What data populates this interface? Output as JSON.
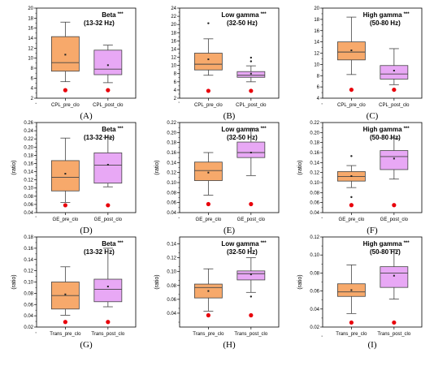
{
  "colors": {
    "pre": "#F7A96B",
    "post": "#E8A8F5",
    "red": "#E8000B",
    "stroke": "#444444"
  },
  "chart_data": [
    {
      "type": "box",
      "panel_label": "(A)",
      "title_band": "Beta",
      "title_sig": "***",
      "title_range": "(13-32 Hz)",
      "ylabel": "",
      "ylim": [
        2,
        20
      ],
      "yticks": [
        2,
        4,
        6,
        8,
        10,
        12,
        14,
        16,
        18,
        20
      ],
      "categories": [
        "CPL_pre_clo",
        "CPL_post_clo"
      ],
      "boxes": [
        {
          "whisker_low": 5.3,
          "q1": 7.4,
          "median": 9.1,
          "q3": 14.3,
          "whisker_high": 17.2,
          "mean": 10.7,
          "outliers": [],
          "marker": 3.6
        },
        {
          "whisker_low": 5.1,
          "q1": 6.7,
          "median": 7.8,
          "q3": 11.6,
          "whisker_high": 12.6,
          "mean": 8.6,
          "outliers": [],
          "marker": 3.6
        }
      ]
    },
    {
      "type": "box",
      "panel_label": "(B)",
      "title_band": "Low gamma",
      "title_sig": "***",
      "title_range": "(32-50 Hz)",
      "ylabel": "",
      "ylim": [
        2,
        24
      ],
      "yticks": [
        2,
        4,
        6,
        8,
        10,
        12,
        14,
        16,
        18,
        20,
        22,
        24
      ],
      "categories": [
        "CPL_pre_clo",
        "CPL_post_clo"
      ],
      "boxes": [
        {
          "whisker_low": 7.6,
          "q1": 8.9,
          "median": 10.3,
          "q3": 13.0,
          "whisker_high": 16.5,
          "mean": 11.5,
          "outliers": [
            20.3
          ],
          "marker": 3.8
        },
        {
          "whisker_low": 6.0,
          "q1": 7.1,
          "median": 7.6,
          "q3": 8.5,
          "whisker_high": 9.9,
          "mean": 8.0,
          "outliers": [
            11.0,
            11.9
          ],
          "marker": 3.8
        }
      ]
    },
    {
      "type": "box",
      "panel_label": "(C)",
      "title_band": "High gamma",
      "title_sig": "***",
      "title_range": "(50-80 Hz)",
      "ylabel": "",
      "ylim": [
        4,
        20
      ],
      "yticks": [
        4,
        6,
        8,
        10,
        12,
        14,
        16,
        18,
        20
      ],
      "categories": [
        "CPL_pre_clo",
        "CPL_post_clo"
      ],
      "boxes": [
        {
          "whisker_low": 8.2,
          "q1": 10.8,
          "median": 12.2,
          "q3": 14.0,
          "whisker_high": 18.4,
          "mean": 12.5,
          "outliers": [],
          "marker": 5.5
        },
        {
          "whisker_low": 6.4,
          "q1": 7.4,
          "median": 8.3,
          "q3": 9.8,
          "whisker_high": 12.8,
          "mean": 8.9,
          "outliers": [],
          "marker": 5.5
        }
      ]
    },
    {
      "type": "box",
      "panel_label": "(D)",
      "title_band": "Beta",
      "title_sig": "***",
      "title_range": "(13-32 Hz)",
      "ylabel": "(ratio)",
      "ylim": [
        0.04,
        0.26
      ],
      "yticks": [
        0.04,
        0.06,
        0.08,
        0.1,
        0.12,
        0.14,
        0.16,
        0.18,
        0.2,
        0.22,
        0.24,
        0.26
      ],
      "categories": [
        "GE_pre_clo",
        "GE_post_clo"
      ],
      "boxes": [
        {
          "whisker_low": 0.065,
          "q1": 0.093,
          "median": 0.126,
          "q3": 0.167,
          "whisker_high": 0.222,
          "mean": 0.135,
          "outliers": [],
          "marker": 0.058
        },
        {
          "whisker_low": 0.103,
          "q1": 0.112,
          "median": 0.156,
          "q3": 0.186,
          "whisker_high": 0.223,
          "mean": 0.157,
          "outliers": [],
          "marker": 0.058
        }
      ]
    },
    {
      "type": "box",
      "panel_label": "(E)",
      "title_band": "Low gamma",
      "title_sig": "***",
      "title_range": "(32-50 Hz)",
      "ylabel": "(ratio)",
      "ylim": [
        0.04,
        0.22
      ],
      "yticks": [
        0.04,
        0.06,
        0.08,
        0.1,
        0.12,
        0.14,
        0.16,
        0.18,
        0.2,
        0.22
      ],
      "categories": [
        "GE_pre_clo",
        "GE_post_clo"
      ],
      "boxes": [
        {
          "whisker_low": 0.075,
          "q1": 0.104,
          "median": 0.124,
          "q3": 0.141,
          "whisker_high": 0.16,
          "mean": 0.12,
          "outliers": [],
          "marker": 0.057
        },
        {
          "whisker_low": 0.114,
          "q1": 0.15,
          "median": 0.16,
          "q3": 0.181,
          "whisker_high": 0.208,
          "mean": 0.16,
          "outliers": [],
          "marker": 0.057
        }
      ]
    },
    {
      "type": "box",
      "panel_label": "(F)",
      "title_band": "High gamma",
      "title_sig": "***",
      "title_range": "(50-80 Hz)",
      "ylabel": "(ratio)",
      "ylim": [
        0.04,
        0.22
      ],
      "yticks": [
        0.04,
        0.06,
        0.08,
        0.1,
        0.12,
        0.14,
        0.16,
        0.18,
        0.2,
        0.22
      ],
      "categories": [
        "GE_pre_clo",
        "GE_post_clo"
      ],
      "boxes": [
        {
          "whisker_low": 0.09,
          "q1": 0.103,
          "median": 0.112,
          "q3": 0.122,
          "whisker_high": 0.134,
          "mean": 0.113,
          "outliers": [
            0.153,
            0.071
          ],
          "marker": 0.055
        },
        {
          "whisker_low": 0.107,
          "q1": 0.126,
          "median": 0.152,
          "q3": 0.164,
          "whisker_high": 0.188,
          "mean": 0.148,
          "outliers": [],
          "marker": 0.055
        }
      ]
    },
    {
      "type": "box",
      "panel_label": "(G)",
      "title_band": "Beta",
      "title_sig": "***",
      "title_range": "(13-32 Hz)",
      "ylabel": "(ratio)",
      "ylim": [
        0.02,
        0.18
      ],
      "yticks": [
        0.02,
        0.04,
        0.06,
        0.08,
        0.1,
        0.12,
        0.14,
        0.16,
        0.18
      ],
      "categories": [
        "Trans_pre_clo",
        "Trans_post_clo"
      ],
      "boxes": [
        {
          "whisker_low": 0.041,
          "q1": 0.052,
          "median": 0.076,
          "q3": 0.1,
          "whisker_high": 0.127,
          "mean": 0.078,
          "outliers": [],
          "marker": 0.029
        },
        {
          "whisker_low": 0.056,
          "q1": 0.065,
          "median": 0.087,
          "q3": 0.105,
          "whisker_high": 0.16,
          "mean": 0.092,
          "outliers": [],
          "marker": 0.029
        }
      ]
    },
    {
      "type": "box",
      "panel_label": "(H)",
      "title_band": "Low gamma",
      "title_sig": "***",
      "title_range": "(32-50 Hz)",
      "ylabel": "(ratio)",
      "ylim": [
        0.02,
        0.15
      ],
      "yticks": [
        0.04,
        0.06,
        0.08,
        0.1,
        0.12,
        0.14
      ],
      "categories": [
        "Trans_pre_clo",
        "Trans_post_clo"
      ],
      "boxes": [
        {
          "whisker_low": 0.043,
          "q1": 0.062,
          "median": 0.077,
          "q3": 0.082,
          "whisker_high": 0.104,
          "mean": 0.072,
          "outliers": [],
          "marker": 0.037
        },
        {
          "whisker_low": 0.07,
          "q1": 0.088,
          "median": 0.097,
          "q3": 0.101,
          "whisker_high": 0.12,
          "mean": 0.096,
          "outliers": [
            0.134,
            0.064
          ],
          "marker": 0.037
        }
      ]
    },
    {
      "type": "box",
      "panel_label": "(I)",
      "title_band": "High gamma",
      "title_sig": "***",
      "title_range": "(50-80 Hz)",
      "ylabel": "(ratio)",
      "ylim": [
        0.02,
        0.12
      ],
      "yticks": [
        0.02,
        0.04,
        0.06,
        0.08,
        0.1,
        0.12
      ],
      "categories": [
        "Trans_pre_clo",
        "Trans_post_clo"
      ],
      "boxes": [
        {
          "whisker_low": 0.035,
          "q1": 0.054,
          "median": 0.059,
          "q3": 0.068,
          "whisker_high": 0.089,
          "mean": 0.061,
          "outliers": [],
          "marker": 0.025
        },
        {
          "whisker_low": 0.051,
          "q1": 0.064,
          "median": 0.08,
          "q3": 0.087,
          "whisker_high": 0.106,
          "mean": 0.077,
          "outliers": [],
          "marker": 0.025
        }
      ]
    }
  ]
}
